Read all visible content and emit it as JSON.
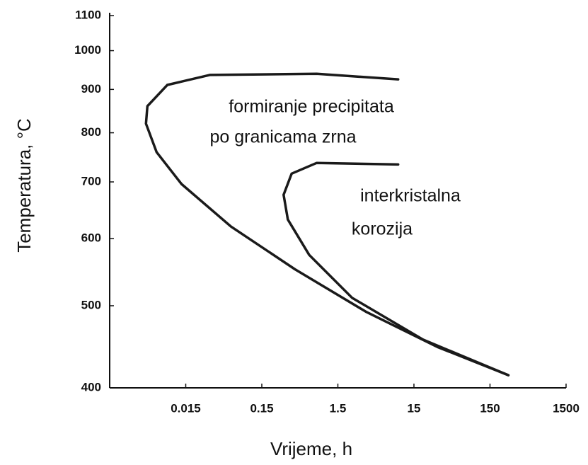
{
  "chart_data": {
    "type": "line",
    "xlabel": "Vrijeme, h",
    "ylabel": "Temperatura, °C",
    "annotations": [
      "formiranje precipitata",
      "po granicama zrna",
      "interkristalna",
      "korozija"
    ],
    "xscale": "log",
    "yscale": "log",
    "xlim": [
      0.0015,
      1500
    ],
    "ylim": [
      400,
      1100
    ],
    "xticks": [
      0.015,
      0.15,
      1.5,
      15,
      150,
      1500
    ],
    "yticks": [
      400,
      500,
      600,
      700,
      800,
      900,
      1000,
      1100
    ],
    "series": [
      {
        "color": "#1a1a1a",
        "x": [
          9.3,
          0.79,
          0.031,
          0.0086,
          0.0047,
          0.0045,
          0.0062,
          0.0132,
          0.059,
          0.41,
          3.5,
          30.5,
          262
        ],
        "values": [
          925,
          939,
          936,
          911,
          860,
          820,
          759,
          696,
          620,
          552,
          492,
          447,
          414
        ]
      },
      {
        "color": "#1a1a1a",
        "x": [
          9.3,
          0.79,
          0.37,
          0.29,
          0.33,
          0.63,
          2.3,
          19.8,
          262
        ],
        "values": [
          734,
          737,
          716,
          676,
          632,
          574,
          511,
          456,
          414
        ]
      }
    ]
  }
}
